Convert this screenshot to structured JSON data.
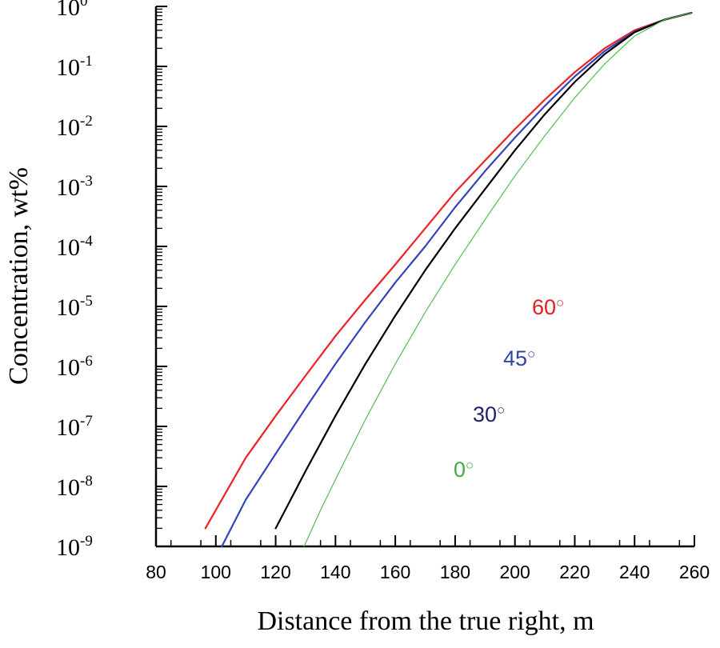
{
  "chart_data": {
    "type": "line",
    "title": "",
    "xlabel": "Distance from the true right, m",
    "ylabel": "Concentration, wt%",
    "xlim": [
      80,
      260
    ],
    "ylim": [
      1e-09,
      1
    ],
    "yscale": "log",
    "x_ticks": [
      "80",
      "100",
      "120",
      "140",
      "160",
      "180",
      "200",
      "220",
      "240",
      "260"
    ],
    "y_ticks": [
      {
        "base": "10",
        "exp": "0",
        "value": 1
      },
      {
        "base": "10",
        "exp": "-1",
        "value": 0.1
      },
      {
        "base": "10",
        "exp": "-2",
        "value": 0.01
      },
      {
        "base": "10",
        "exp": "-3",
        "value": 0.001
      },
      {
        "base": "10",
        "exp": "-4",
        "value": 0.0001
      },
      {
        "base": "10",
        "exp": "-5",
        "value": 1e-05
      },
      {
        "base": "10",
        "exp": "-6",
        "value": 1e-06
      },
      {
        "base": "10",
        "exp": "-7",
        "value": 1e-07
      },
      {
        "base": "10",
        "exp": "-8",
        "value": 1e-08
      },
      {
        "base": "10",
        "exp": "-9",
        "value": 1e-09
      }
    ],
    "series": [
      {
        "name": "60°",
        "label": "60",
        "color": "#ee2222",
        "label_color": "#e02020",
        "x": [
          96.5,
          110,
          120,
          130,
          140,
          150,
          160,
          170,
          180,
          190,
          200,
          210,
          220,
          230,
          240,
          250,
          259
        ],
        "y": [
          2e-09,
          3e-08,
          1.5e-07,
          7e-07,
          3.2e-06,
          1.3e-05,
          5e-05,
          0.0002,
          0.0008,
          0.0027,
          0.009,
          0.028,
          0.08,
          0.2,
          0.4,
          0.6,
          0.78
        ]
      },
      {
        "name": "45°",
        "label": "45",
        "color": "#3344bb",
        "label_color": "#3344aa",
        "x": [
          102,
          110,
          120,
          130,
          140,
          150,
          160,
          170,
          180,
          190,
          200,
          210,
          220,
          230,
          240,
          250,
          259
        ],
        "y": [
          1e-09,
          6e-09,
          3.5e-08,
          2e-07,
          1.1e-06,
          5.5e-06,
          2.5e-05,
          0.0001,
          0.00045,
          0.0018,
          0.0065,
          0.022,
          0.068,
          0.18,
          0.38,
          0.6,
          0.78
        ]
      },
      {
        "name": "30°",
        "label": "30",
        "color": "#000000",
        "label_color": "#222266",
        "x": [
          120,
          125,
          130,
          140,
          150,
          160,
          170,
          180,
          190,
          200,
          210,
          220,
          230,
          240,
          250,
          259
        ],
        "y": [
          2e-09,
          6e-09,
          1.8e-08,
          1.5e-07,
          1.1e-06,
          7e-06,
          4e-05,
          0.0002,
          0.0009,
          0.004,
          0.016,
          0.055,
          0.16,
          0.37,
          0.6,
          0.78
        ]
      },
      {
        "name": "0°",
        "label": "0",
        "color": "#55bb55",
        "label_color": "#44aa44",
        "x": [
          129.5,
          135,
          140,
          150,
          160,
          170,
          180,
          190,
          200,
          210,
          220,
          230,
          240,
          250,
          259
        ],
        "y": [
          1e-09,
          4e-09,
          1.3e-08,
          1.3e-07,
          1.1e-06,
          8e-06,
          5e-05,
          0.00028,
          0.0015,
          0.007,
          0.03,
          0.11,
          0.32,
          0.6,
          0.78
        ]
      }
    ],
    "degree_symbol": "○"
  }
}
